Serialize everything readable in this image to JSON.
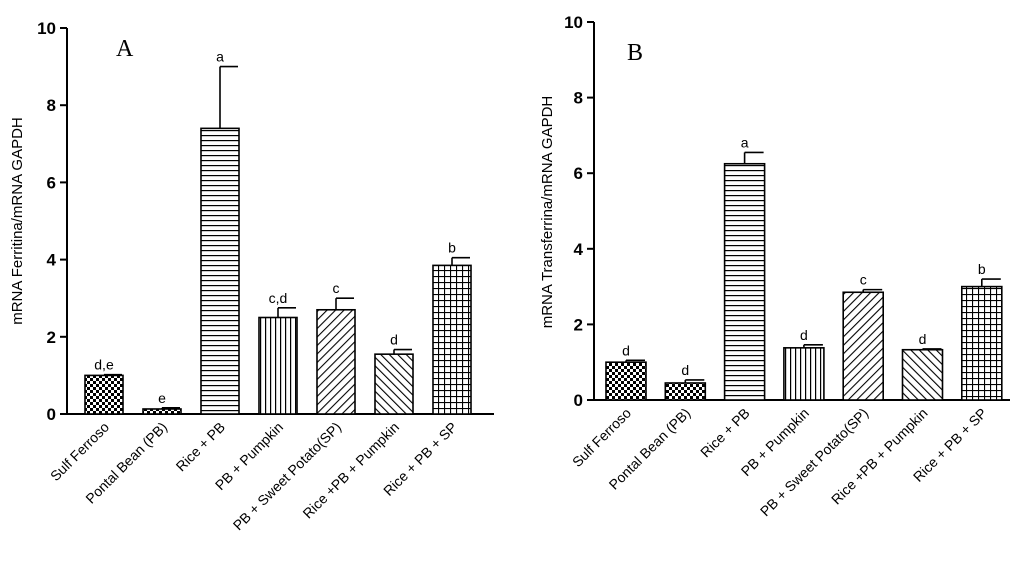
{
  "chart_data": [
    {
      "type": "bar",
      "panel": "A",
      "ylabel": "mRNA Ferritina/mRNA GAPDH",
      "xlabel": "",
      "ylim": [
        0,
        10
      ],
      "yticks": [
        "0",
        "2",
        "4",
        "6",
        "8",
        "10"
      ],
      "categories": [
        "Sulf Ferroso",
        "Pontal Bean (PB)",
        "Rice + PB",
        "PB + Pumpkin",
        "PB + Sweet Potato(SP)",
        "Rice +PB + Pumpkin",
        "Rice + PB + SP"
      ],
      "values": [
        1.0,
        0.13,
        7.4,
        2.5,
        2.7,
        1.55,
        3.85
      ],
      "errors": [
        0.02,
        0.03,
        1.6,
        0.25,
        0.3,
        0.12,
        0.2
      ],
      "letters": [
        "d,e",
        "e",
        "a",
        "c,d",
        "c",
        "d",
        "b"
      ],
      "patterns": [
        "checker",
        "checker",
        "hlines",
        "vlines",
        "diag-right",
        "diag-left",
        "grid"
      ]
    },
    {
      "type": "bar",
      "panel": "B",
      "ylabel": "mRNA Transferrina/mRNA GAPDH",
      "xlabel": "",
      "ylim": [
        0,
        10
      ],
      "yticks": [
        "0",
        "2",
        "4",
        "6",
        "8",
        "10"
      ],
      "categories": [
        "Sulf Ferroso",
        "Pontal Bean (PB)",
        "Rice + PB",
        "PB + Pumpkin",
        "PB + Sweet Potato(SP)",
        "Rice +PB + Pumpkin",
        "Rice + PB + SP"
      ],
      "values": [
        1.0,
        0.45,
        6.25,
        1.38,
        2.85,
        1.33,
        3.0
      ],
      "errors": [
        0.05,
        0.08,
        0.3,
        0.08,
        0.07,
        0.02,
        0.2
      ],
      "letters": [
        "d",
        "d",
        "a",
        "d",
        "c",
        "d",
        "b"
      ],
      "patterns": [
        "checker",
        "checker",
        "hlines",
        "vlines",
        "diag-right",
        "diag-left",
        "grid"
      ]
    }
  ]
}
